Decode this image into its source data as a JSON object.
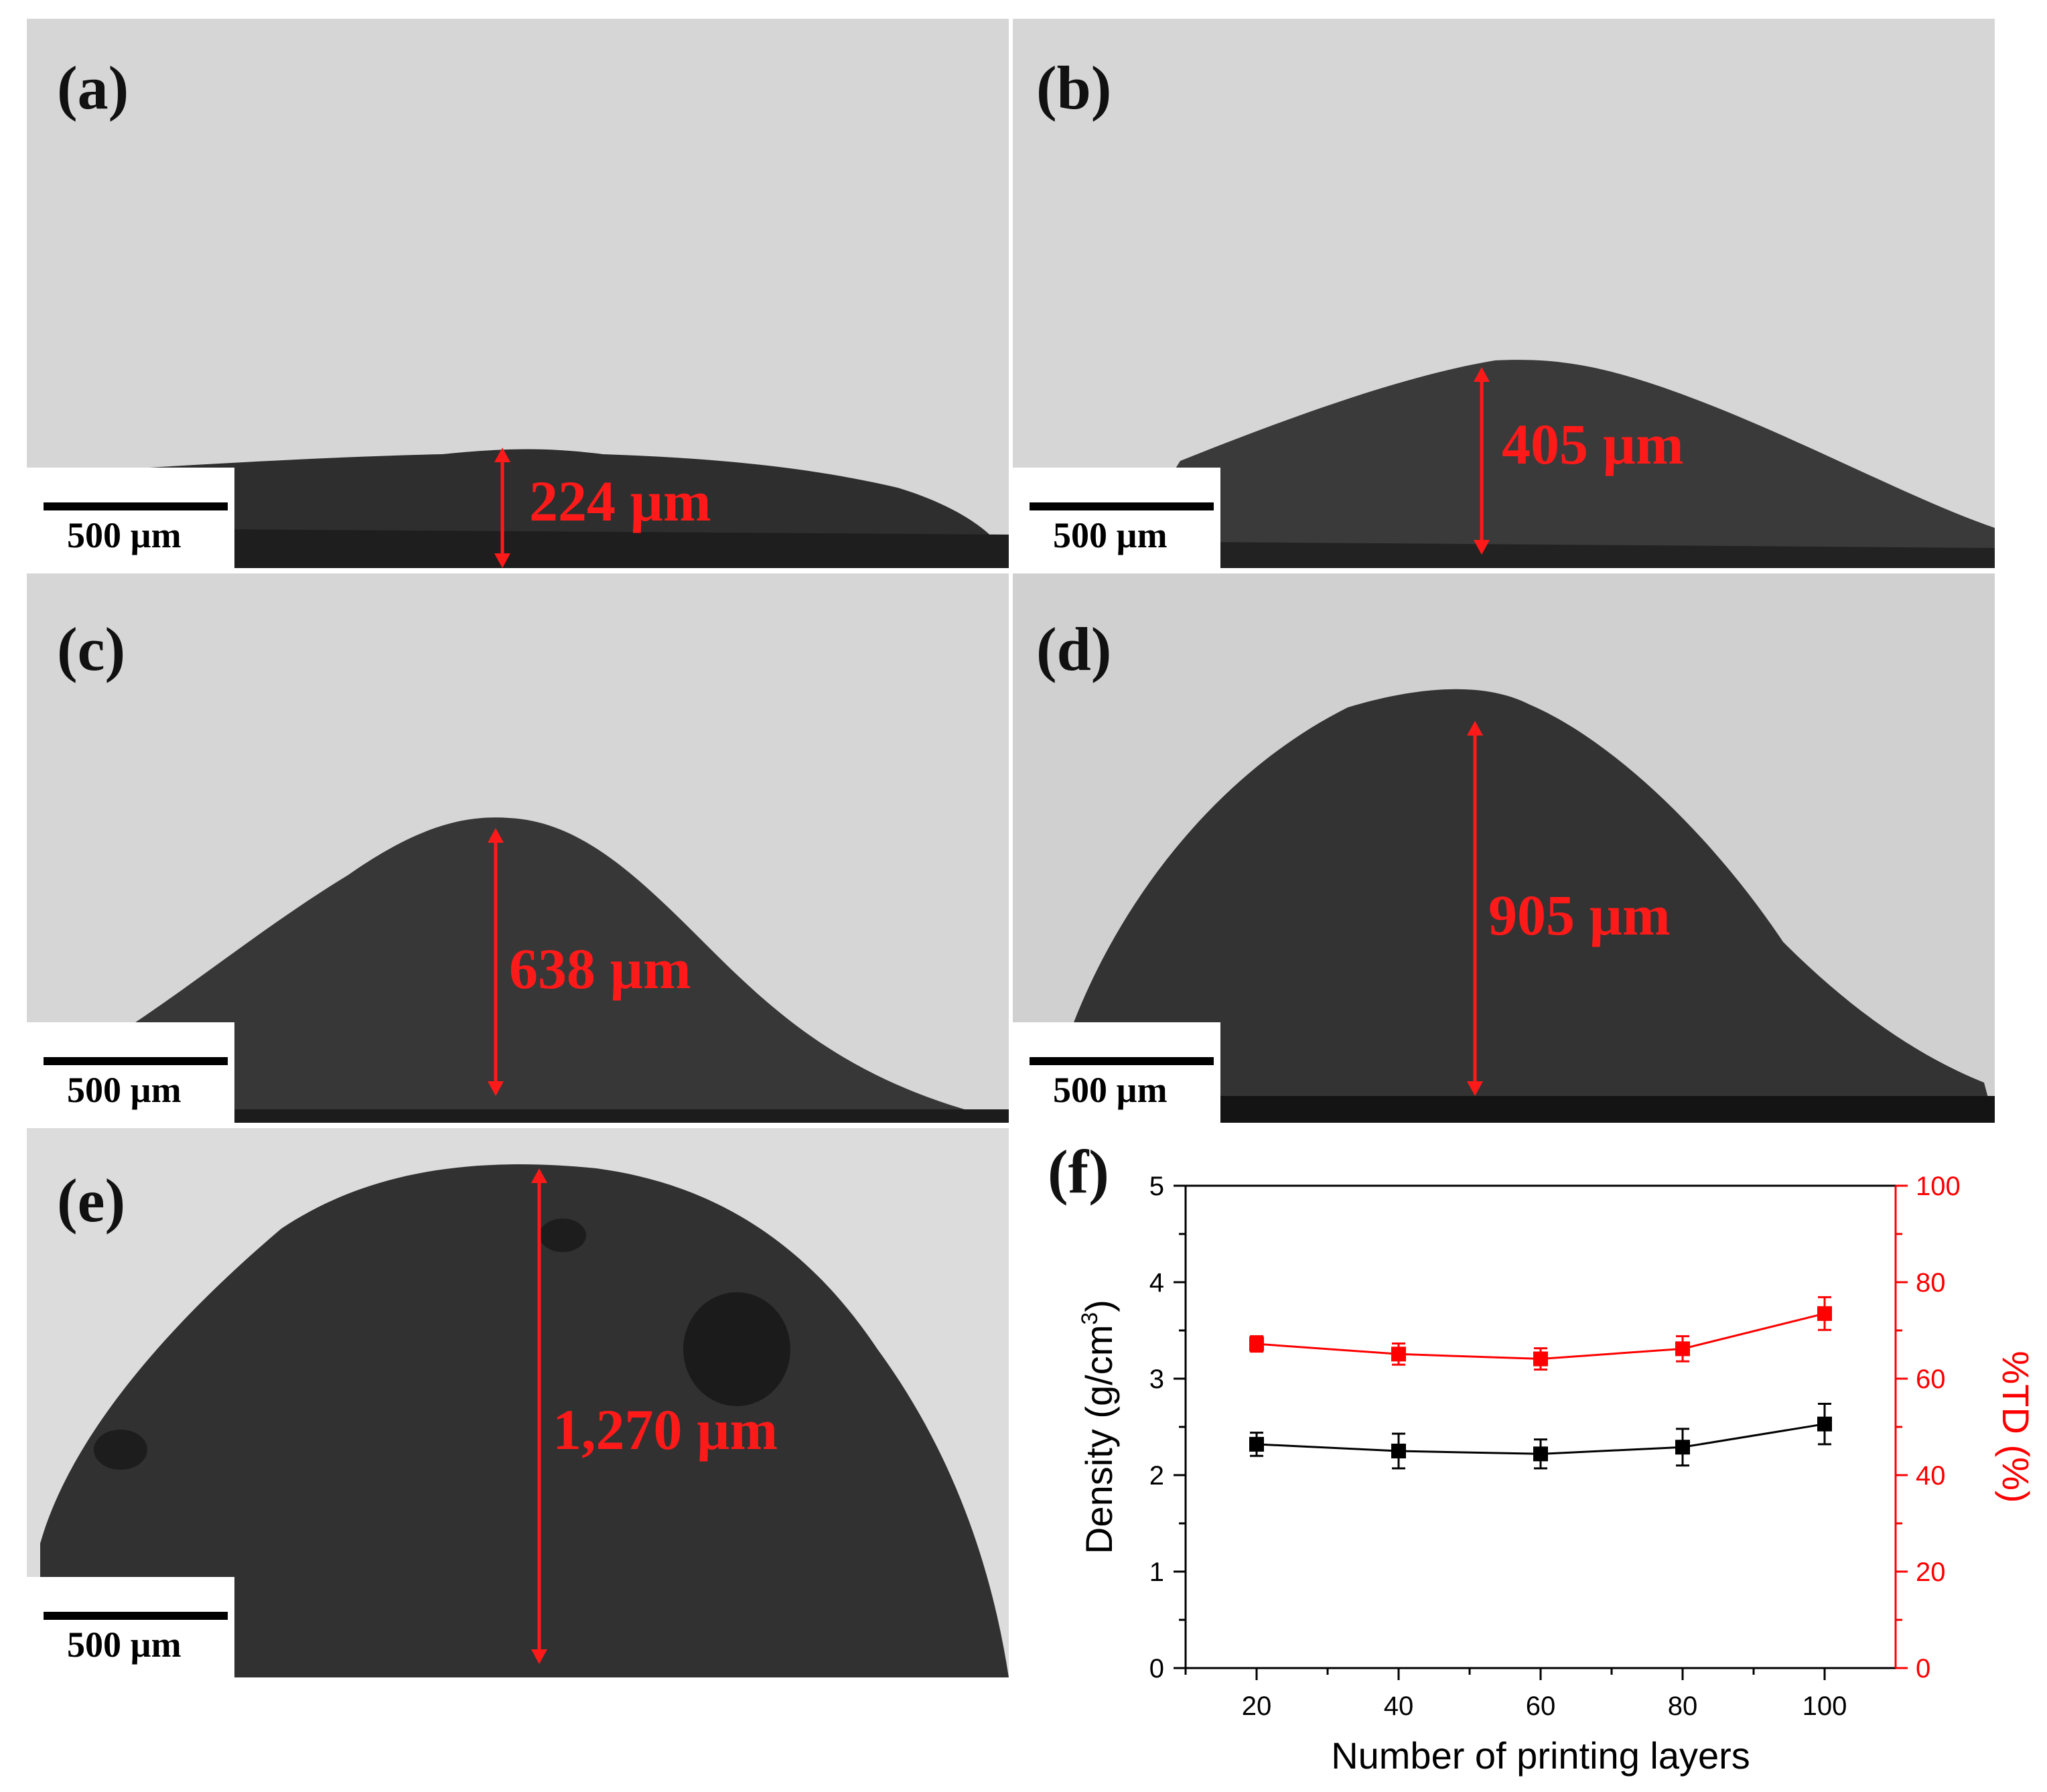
{
  "panels": [
    {
      "label": "(a)",
      "measurement": "224 µm",
      "scale": "500 µm"
    },
    {
      "label": "(b)",
      "measurement": "405 µm",
      "scale": "500 µm"
    },
    {
      "label": "(c)",
      "measurement": "638 µm",
      "scale": "500 µm"
    },
    {
      "label": "(d)",
      "measurement": "905 µm",
      "scale": "500 µm"
    },
    {
      "label": "(e)",
      "measurement": "1,270 µm",
      "scale": "500 µm"
    }
  ],
  "colors": {
    "measure": "#ff1a1a",
    "density": "#000000",
    "td": "#ff0000"
  },
  "chart_data": {
    "type": "line",
    "label": "(f)",
    "xlabel": "Number of printing layers",
    "ylabel": "Density (g/cm3)",
    "ylabel_right": "%TD (%)",
    "x": [
      20,
      40,
      60,
      80,
      100
    ],
    "xticks": [
      20,
      40,
      60,
      80,
      100
    ],
    "xlim": [
      10,
      110
    ],
    "ylim": [
      0,
      5
    ],
    "yticks": [
      0,
      1,
      2,
      3,
      4,
      5
    ],
    "ylim_right": [
      0,
      100
    ],
    "yticks_right": [
      0,
      20,
      40,
      60,
      80,
      100
    ],
    "grid": false,
    "series": [
      {
        "axis": "left",
        "color": "#000000",
        "marker": "square",
        "values": [
          2.32,
          2.25,
          2.22,
          2.29,
          2.53
        ],
        "errors": [
          0.12,
          0.18,
          0.15,
          0.19,
          0.21
        ]
      },
      {
        "axis": "right",
        "color": "#ff0000",
        "marker": "square",
        "values": [
          67.2,
          65.1,
          64.1,
          66.2,
          73.5
        ],
        "errors": [
          1.6,
          2.2,
          2.2,
          2.6,
          3.4
        ]
      }
    ]
  }
}
